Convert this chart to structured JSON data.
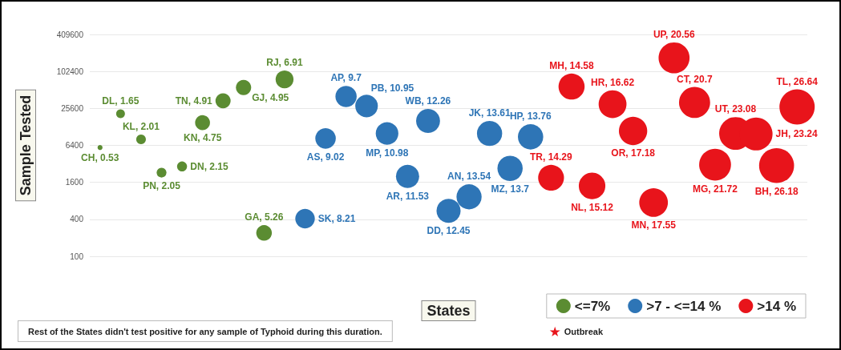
{
  "chart_data": {
    "type": "bubble",
    "xlabel": "States",
    "ylabel": "Sample Tested",
    "categories": [
      null,
      null,
      null,
      null,
      null,
      null,
      null,
      null,
      null,
      null,
      null,
      null,
      null,
      null,
      null,
      null,
      null,
      null,
      null,
      null,
      null,
      null,
      null,
      null,
      null,
      null,
      null,
      null,
      null,
      null,
      null,
      null,
      null,
      null,
      null
    ],
    "ylim": [
      100,
      409600
    ],
    "yticks": [
      100,
      400,
      1600,
      6400,
      25600,
      102400,
      409600
    ],
    "log": "y",
    "grid": "y",
    "tick_labels": "y",
    "legend": "bottom right",
    "marker": "circle",
    "annotations": [
      "Rest of the States didn't test positive for any sample of Typhoid during this duration."
    ],
    "series": [
      {
        "name": "<=7%",
        "color": "#5b8c32",
        "values": [
          5900,
          21000,
          8000,
          2300,
          2900,
          15000,
          34000,
          56000,
          240,
          76000,
          null,
          null,
          null,
          null,
          null,
          null,
          null,
          null,
          null,
          null,
          null,
          null,
          null,
          null,
          null,
          null,
          null,
          null,
          null,
          null,
          null,
          null,
          null,
          null,
          null
        ],
        "sizes": [
          0.53,
          1.65,
          2.01,
          2.05,
          2.15,
          4.75,
          4.91,
          4.95,
          5.26,
          6.91,
          null,
          null,
          null,
          null,
          null,
          null,
          null,
          null,
          null,
          null,
          null,
          null,
          null,
          null,
          null,
          null,
          null,
          null,
          null,
          null,
          null,
          null,
          null,
          null,
          null
        ],
        "value_labels": [
          "CH, 0.53",
          "DL, 1.65",
          "KL, 2.01",
          "PN, 2.05",
          "DN, 2.15",
          "KN, 4.75",
          "TN, 4.91",
          "GJ, 4.95",
          "GA, 5.26",
          "RJ, 6.91",
          null,
          null,
          null,
          null,
          null,
          null,
          null,
          null,
          null,
          null,
          null,
          null,
          null,
          null,
          null,
          null,
          null,
          null,
          null,
          null,
          null,
          null,
          null,
          null,
          null
        ]
      },
      {
        "name": ">7 - <=14 %",
        "color": "#2e75b6",
        "values": [
          null,
          null,
          null,
          null,
          null,
          null,
          null,
          null,
          null,
          null,
          410,
          8300,
          40000,
          28000,
          10000,
          2000,
          16000,
          550,
          930,
          10000,
          2700,
          8800,
          null,
          null,
          null,
          null,
          null,
          null,
          null,
          null,
          null,
          null,
          null,
          null,
          null
        ],
        "sizes": [
          null,
          null,
          null,
          null,
          null,
          null,
          null,
          null,
          null,
          null,
          8.21,
          9.02,
          9.7,
          10.95,
          10.98,
          11.53,
          12.26,
          12.45,
          13.54,
          13.61,
          13.7,
          13.76,
          null,
          null,
          null,
          null,
          null,
          null,
          null,
          null,
          null,
          null,
          null,
          null,
          null
        ],
        "value_labels": [
          null,
          null,
          null,
          null,
          null,
          null,
          null,
          null,
          null,
          null,
          "SK, 8.21",
          "AS, 9.02",
          "AP, 9.7",
          "PB, 10.95",
          "MP, 10.98",
          "AR, 11.53",
          "WB, 12.26",
          "DD, 12.45",
          "AN, 13.54",
          "JK, 13.61",
          "MZ, 13.7",
          "HP, 13.76",
          null,
          null,
          null,
          null,
          null,
          null,
          null,
          null,
          null,
          null,
          null,
          null,
          null
        ]
      },
      {
        "name": ">14 %",
        "color": "#e8141b",
        "values": [
          null,
          null,
          null,
          null,
          null,
          null,
          null,
          null,
          null,
          null,
          null,
          null,
          null,
          null,
          null,
          null,
          null,
          null,
          null,
          null,
          null,
          null,
          1900,
          58000,
          1400,
          30000,
          11000,
          750,
          170000,
          32000,
          3100,
          10000,
          9800,
          3000,
          27000
        ],
        "sizes": [
          null,
          null,
          null,
          null,
          null,
          null,
          null,
          null,
          null,
          null,
          null,
          null,
          null,
          null,
          null,
          null,
          null,
          null,
          null,
          null,
          null,
          null,
          14.29,
          14.58,
          15.12,
          16.62,
          17.18,
          17.55,
          20.56,
          20.7,
          21.72,
          23.08,
          23.24,
          26.18,
          26.64
        ],
        "value_labels": [
          null,
          null,
          null,
          null,
          null,
          null,
          null,
          null,
          null,
          null,
          null,
          null,
          null,
          null,
          null,
          null,
          null,
          null,
          null,
          null,
          null,
          null,
          "TR, 14.29",
          "MH, 14.58",
          "NL, 15.12",
          "HR, 16.62",
          "OR, 17.18",
          "MN, 17.55",
          "UP, 20.56",
          "CT, 20.7",
          "MG, 21.72",
          "UT, 23.08",
          "JH, 23.24",
          "BH, 26.18",
          "TL, 26.64"
        ]
      },
      {
        "name": "Outbreak",
        "color": "#e8141b",
        "marker": "star",
        "values": [
          null,
          null,
          null,
          null,
          null,
          null,
          null,
          null,
          null,
          null,
          null,
          null,
          null,
          null,
          null,
          null,
          null,
          null,
          null,
          null,
          null,
          null,
          null,
          null,
          null,
          null,
          null,
          null,
          null,
          null,
          null,
          null,
          null,
          null,
          null
        ]
      }
    ]
  }
}
